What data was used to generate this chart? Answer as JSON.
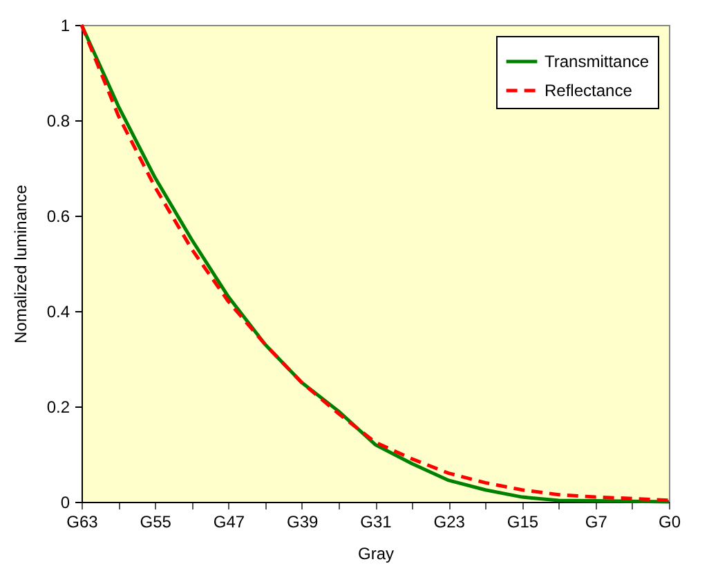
{
  "chart_data": {
    "type": "line",
    "xlabel": "Gray",
    "ylabel": "Nomalized luminance",
    "categories": [
      "G63",
      null,
      "G55",
      null,
      "G47",
      null,
      "G39",
      null,
      "G31",
      null,
      "G23",
      null,
      "G15",
      null,
      "G7",
      null,
      "G0"
    ],
    "series": [
      {
        "name": "Transmittance",
        "color": "#008000",
        "line_style": "solid",
        "values": [
          1,
          0.83,
          0.68,
          0.55,
          0.43,
          0.33,
          0.25,
          0.19,
          0.12,
          0.08,
          0.045,
          0.025,
          0.01,
          0.003,
          0.002,
          0.001,
          0
        ]
      },
      {
        "name": "Reflectance",
        "color": "#ff0000",
        "line_style": "dashed",
        "values": [
          1,
          0.81,
          0.66,
          0.53,
          0.42,
          0.33,
          0.25,
          0.185,
          0.125,
          0.09,
          0.06,
          0.04,
          0.025,
          0.015,
          0.01,
          0.007,
          0.003
        ]
      }
    ],
    "ylim": [
      0,
      1
    ],
    "yticks": [
      0,
      0.2,
      0.4,
      0.6,
      0.8,
      1
    ],
    "grid": false,
    "legend": "top right",
    "marker": "none"
  }
}
